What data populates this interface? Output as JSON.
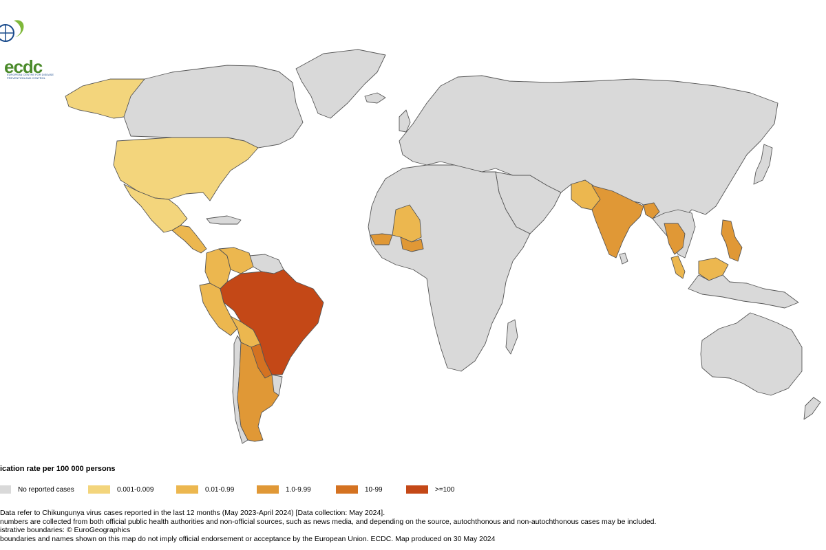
{
  "logo": {
    "text": "ecdc",
    "subtitle": "European Centre for Disease Prevention and Control"
  },
  "legend": {
    "title": "ication rate per 100 000 persons",
    "classes": [
      {
        "label": "No reported cases",
        "color": "#d9d9d9"
      },
      {
        "label": "0.001-0.009",
        "color": "#f3d57c"
      },
      {
        "label": "0.01-0.99",
        "color": "#ecb74f"
      },
      {
        "label": "1.0-9.99",
        "color": "#e09836"
      },
      {
        "label": "10-99",
        "color": "#d47221"
      },
      {
        "label": ">=100",
        "color": "#c44817"
      }
    ]
  },
  "notes": [
    "Data refer to Chikungunya virus cases reported in the last 12 months (May 2023-April 2024) [Data collection: May 2024].",
    "numbers are collected from both official public health authorities and non-official sources, such as news media, and depending on the source, autochthonous and non-autochthonous cases may be included.",
    "istrative boundaries: © EuroGeographics",
    "boundaries and names shown on this map do not imply official endorsement or acceptance by the European Union. ECDC. Map produced on 30 May 2024"
  ],
  "map_data": {
    "regions": [
      {
        "id": "north-america-north",
        "class": 0
      },
      {
        "id": "greenland",
        "class": 0
      },
      {
        "id": "alaska",
        "class": 1
      },
      {
        "id": "united-states",
        "class": 1
      },
      {
        "id": "mexico",
        "class": 1
      },
      {
        "id": "central-america",
        "class": 2
      },
      {
        "id": "venezuela",
        "class": 2
      },
      {
        "id": "colombia",
        "class": 2
      },
      {
        "id": "peru",
        "class": 2
      },
      {
        "id": "bolivia",
        "class": 2
      },
      {
        "id": "paraguay",
        "class": 4
      },
      {
        "id": "brazil",
        "class": 5
      },
      {
        "id": "argentina",
        "class": 3
      },
      {
        "id": "chile",
        "class": 0
      },
      {
        "id": "guianas",
        "class": 0
      },
      {
        "id": "mali",
        "class": 2
      },
      {
        "id": "senegal",
        "class": 3
      },
      {
        "id": "burkina-faso",
        "class": 3
      },
      {
        "id": "africa-other",
        "class": 0
      },
      {
        "id": "eurasia-other",
        "class": 0
      },
      {
        "id": "pakistan",
        "class": 2
      },
      {
        "id": "india",
        "class": 3
      },
      {
        "id": "bangladesh",
        "class": 3
      },
      {
        "id": "thailand",
        "class": 3
      },
      {
        "id": "malaysia",
        "class": 2
      },
      {
        "id": "philippines",
        "class": 3
      },
      {
        "id": "borneo-malaysia",
        "class": 2
      },
      {
        "id": "indonesia",
        "class": 0
      },
      {
        "id": "australia",
        "class": 0
      },
      {
        "id": "new-zealand",
        "class": 0
      }
    ]
  }
}
